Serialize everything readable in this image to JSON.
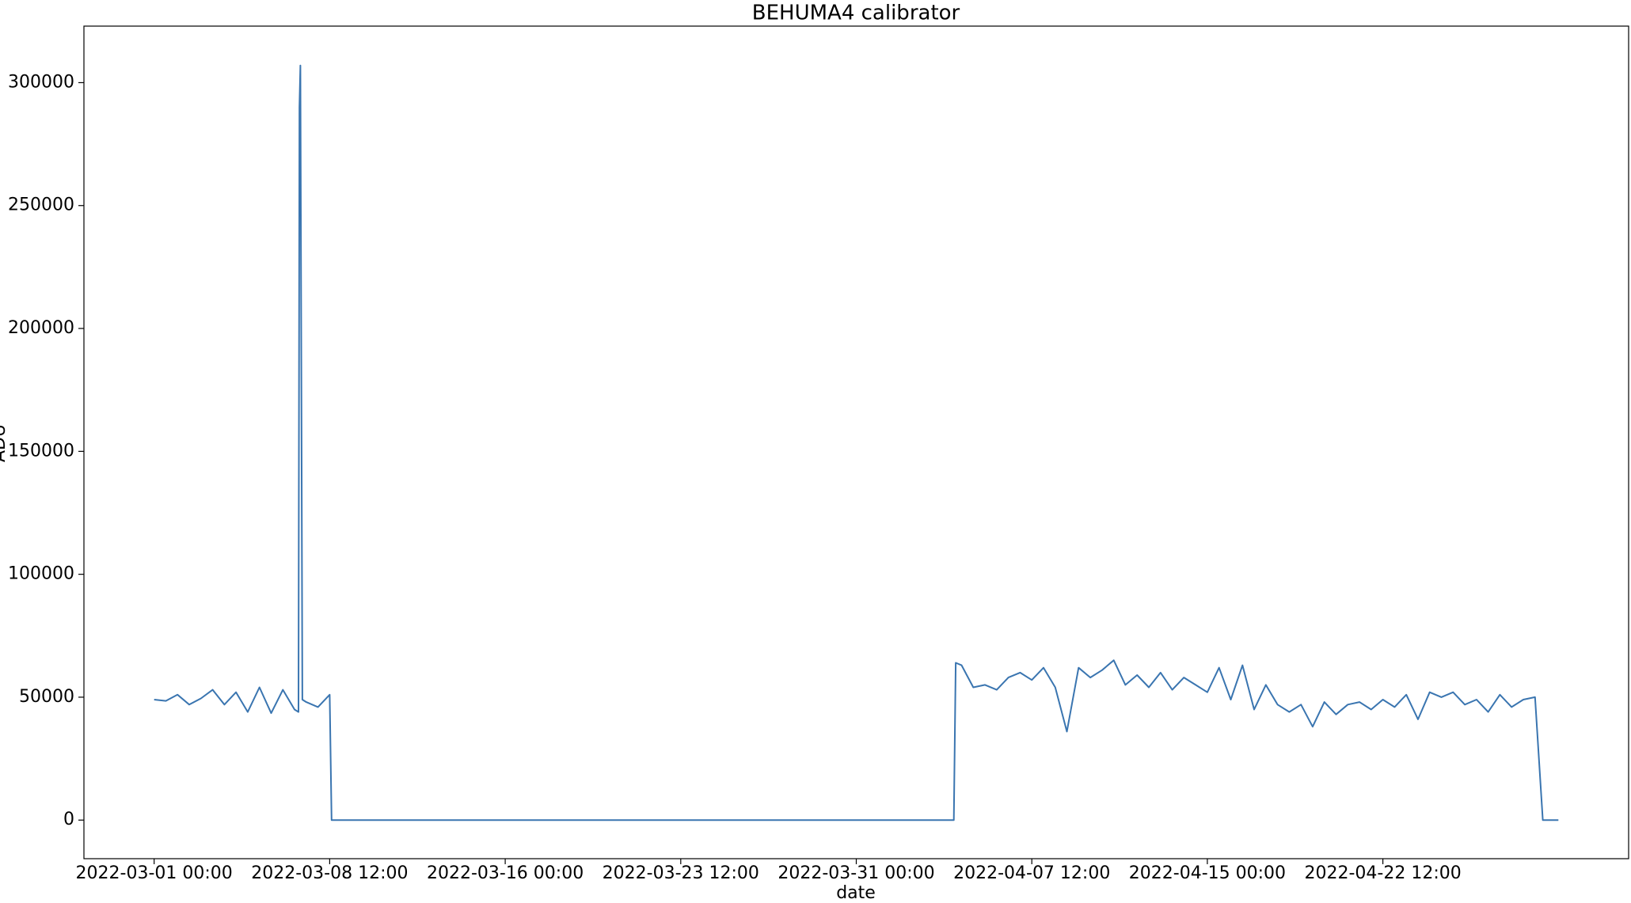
{
  "chart_data": {
    "type": "line",
    "title": "BEHUMA4 calibrator",
    "x_label": "date",
    "y_label": "ADU",
    "x": [
      "2022-03-01 00:00",
      "2022-03-01 12:00",
      "2022-03-02 00:00",
      "2022-03-02 12:00",
      "2022-03-03 00:00",
      "2022-03-03 12:00",
      "2022-03-04 00:00",
      "2022-03-04 12:00",
      "2022-03-05 00:00",
      "2022-03-05 12:00",
      "2022-03-06 00:00",
      "2022-03-06 12:00",
      "2022-03-07 00:00",
      "2022-03-07 04:00",
      "2022-03-07 05:00",
      "2022-03-07 06:00",
      "2022-03-07 08:00",
      "2022-03-07 12:00",
      "2022-03-08 00:00",
      "2022-03-08 12:00",
      "2022-03-08 14:00",
      "2022-03-10 00:00",
      "2022-03-15 00:00",
      "2022-03-20 00:00",
      "2022-03-25 00:00",
      "2022-03-30 00:00",
      "2022-04-04 04:00",
      "2022-04-04 06:00",
      "2022-04-04 12:00",
      "2022-04-05 00:00",
      "2022-04-05 12:00",
      "2022-04-06 00:00",
      "2022-04-06 12:00",
      "2022-04-07 00:00",
      "2022-04-07 12:00",
      "2022-04-08 00:00",
      "2022-04-08 12:00",
      "2022-04-09 00:00",
      "2022-04-09 12:00",
      "2022-04-10 00:00",
      "2022-04-10 12:00",
      "2022-04-11 00:00",
      "2022-04-11 12:00",
      "2022-04-12 00:00",
      "2022-04-12 12:00",
      "2022-04-13 00:00",
      "2022-04-13 12:00",
      "2022-04-14 00:00",
      "2022-04-14 12:00",
      "2022-04-15 00:00",
      "2022-04-15 12:00",
      "2022-04-16 00:00",
      "2022-04-16 12:00",
      "2022-04-17 00:00",
      "2022-04-17 12:00",
      "2022-04-18 00:00",
      "2022-04-18 12:00",
      "2022-04-19 00:00",
      "2022-04-19 12:00",
      "2022-04-20 00:00",
      "2022-04-20 12:00",
      "2022-04-21 00:00",
      "2022-04-21 12:00",
      "2022-04-22 00:00",
      "2022-04-22 12:00",
      "2022-04-23 00:00",
      "2022-04-23 12:00",
      "2022-04-24 00:00",
      "2022-04-24 12:00",
      "2022-04-25 00:00",
      "2022-04-25 12:00",
      "2022-04-26 00:00",
      "2022-04-26 12:00",
      "2022-04-27 00:00",
      "2022-04-27 12:00",
      "2022-04-28 00:00",
      "2022-04-28 12:00",
      "2022-04-29 00:00",
      "2022-04-29 08:00",
      "2022-04-30 00:00"
    ],
    "series": [
      {
        "name": "ADU",
        "color": "#3a75b0",
        "values": [
          49000,
          48500,
          51000,
          47000,
          49500,
          53000,
          47000,
          52000,
          44000,
          54000,
          43500,
          53000,
          45000,
          44000,
          290000,
          307000,
          49000,
          48000,
          46000,
          51000,
          0,
          0,
          0,
          0,
          0,
          0,
          0,
          64000,
          63000,
          54000,
          55000,
          53000,
          58000,
          60000,
          57000,
          62000,
          54000,
          36000,
          62000,
          58000,
          61000,
          65000,
          55000,
          59000,
          54000,
          60000,
          53000,
          58000,
          55000,
          52000,
          62000,
          49000,
          63000,
          45000,
          55000,
          47000,
          44000,
          47000,
          38000,
          48000,
          43000,
          47000,
          48000,
          45000,
          49000,
          46000,
          51000,
          41000,
          52000,
          50000,
          52000,
          47000,
          49000,
          44000,
          51000,
          46000,
          49000,
          50000,
          0,
          0
        ]
      }
    ],
    "xlim": [
      "2022-02-26 00:00",
      "2022-05-03 00:00"
    ],
    "xticks": [
      "2022-03-01 00:00",
      "2022-03-08 12:00",
      "2022-03-16 00:00",
      "2022-03-23 12:00",
      "2022-03-31 00:00",
      "2022-04-07 12:00",
      "2022-04-15 00:00",
      "2022-04-22 12:00"
    ],
    "ylim": [
      -15700,
      323000
    ],
    "yticks": [
      0,
      50000,
      100000,
      150000,
      200000,
      250000,
      300000
    ]
  }
}
